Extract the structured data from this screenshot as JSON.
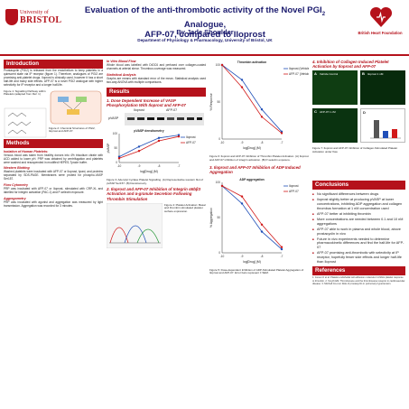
{
  "header": {
    "logo_small": "University of",
    "logo_big": "BRISTOL",
    "title_line1": "Evaluation of the anti-thrombotic activity of the Novel PGI",
    "title_sub": "2",
    "title_line1b": " Analogue,",
    "title_line2": "AFP-07, compared to Iloprost",
    "author": "By Jade Shoulder",
    "dept": "Department of Physiology & Pharmacology, University of Bristol, UK",
    "bhf_label": "British Heart Foundation"
  },
  "col1": {
    "intro_title": "Introduction",
    "intro_text": "Prostacyclin (PGI2) is released from the endothelium to keep platelets in a quiescent state via IP receptor (figure 1). Therefore, analogues of PGI2 are promising anti-platelet drugs. Iloprost is clinically used, however it has a short half-life and many side effects. AFP-07 is a novel PGI2 analogue with higher selectivity for IP receptor and a longer half-life.",
    "fig1_caption": "Figure 1: Signalling Pathway within Platelets (adapted from Ref. 1)",
    "fig2_caption": "Figure 2: Chemical Structures of PGI2, Iloprost and AFP-07.",
    "methods_title": "Methods",
    "m1_sub": "Isolation of Human Platelets:",
    "m1_text": "Venous blood was taken from healthy donors into 4% trisodium citrate with ACD added to lower pH. PRP was obtained by centrifugation and platelets were washed and resuspended in modified HEPES-Tyrode buffer.",
    "m2_sub": "Western Blotting",
    "m2_text": "Washed platelets were incubated with AFP-07 or Iloprost, lysed, and proteins separated by SDS-PAGE. Membranes were probed for phospho-VASP Ser157.",
    "m3_sub": "Flow Cytometry",
    "m3_text": "PRP was incubated with AFP-07 or Iloprost, stimulated with CRP-XL and labelled for integrin activation (PAC-1) and P-selectin exposure.",
    "m4_sub": "Aggregometry",
    "m4_text": "PRP was incubated with agonist and aggregation was measured by light transmission. Aggregation was recorded for 3 minutes."
  },
  "col2": {
    "m5_sub": "In Vitro Blood Flow",
    "m5_text": "Whole blood was labelled with DiOC6 and perfused over collagen-coated channels at arterial shear. Thrombus coverage was measured.",
    "stats_sub": "Statistical Analysis",
    "stats_text": "Graphs are means with standard error of the mean. Statistical analysis used two-way ANOVA with multiple comparisons.",
    "results_title": "Results",
    "r1_title": "1. Dose Dependent Increase of VASP Phosphorylation With Iloprost and AFP-07",
    "blot_label1": "Iloprost",
    "blot_label2": "AFP-07",
    "blot_row": "pVASP",
    "r1_caption": "Figure 3: Adenylyl Cyclase Platelet Signalling. (A) Representative western blot of pVASP Ser157. (B) Densitometry.",
    "r2_title": "2. Iloprost and AFP-07 Inhibition of Integrin αIIbβ3 Activation and α-granule Secretion Following Thrombin Stimulation",
    "r2_panel": "Figure 4: Platelet Activation: Basal and thrombin stimulated platelet surface expression."
  },
  "col3": {
    "r3_caption": "Figure 6: Iloprost and AFP-07 Inhibition of Thrombin Platelet Activation. (A) Iloprost and AFP-07 inhibition of integrin activation. (B) P-selectin exposure.",
    "r3_title": "3. Iloprost and AFP-07 Inhibition of ADP Induced Aggregation",
    "r3b_caption": "Figure 5: Dose-dependent Inhibition of ADP-Stimulated Platelet Aggregation of Iloprost and AFP-07. Error bars represent ± SEM."
  },
  "col4": {
    "r4_title": "4. Inhibition of Collagen Induced Platelet Activation by Iloprost and AFP-07",
    "panel_a": "A",
    "panel_b": "B",
    "panel_c": "C",
    "panel_d": "D",
    "panel_a_label": "Vehicle Control",
    "panel_b_label": "Iloprost 1 nM",
    "panel_c_label": "AFP-07 1 nM",
    "panel_d_label": "",
    "r4_caption": "Figure 7: Iloprost and AFP-07 Inhibition of Collagen-Stimulated Platelet Activation under flow.",
    "conclusions_title": "Conclusions",
    "conclusions": [
      "No significant differences between drugs",
      "Iloprost slightly better at producing pVASP at lower concentrations, inhibiting ADP aggregation and collagen thrombus formation at 1 nM concentration used",
      "AFP-07 better at inhibiting thrombin",
      "More concentrations are needed between 0.1 and 10 nM aggregations",
      "AFP-07 able to work in plasma and whole blood, above prostacyclin in vivo",
      "Future in vivo experiments needed to determine pharmacokinetic differences and find the half-life for AFP-07",
      "AFP-07 promising anti-thrombotic with selectivity at IP receptor, hopefully fewer side effects and longer half-life than Iloprost"
    ],
    "refs_title": "References",
    "refs": "1. Jones CI et al. Platelet endothelial cell adhesion molecule-1 inhibits platelet response to thrombin. 2. Smyth EM. Thromboxane and the thromboxane receptor in cardiovascular disease. 3. Mitchell JA et al. Role of prostacyclin in pulmonary hypertension."
  },
  "colors": {
    "accent": "#b5121b",
    "navy": "#1b1b6e",
    "iloprost": "#1f4fb8",
    "afp": "#d11a1a"
  },
  "chart_data": [
    {
      "type": "line",
      "title": "pVASP densitometry",
      "xlabel": "log[Drug] (M)",
      "ylabel": "pVASP",
      "series": [
        {
          "name": "Iloprost",
          "x": [
            -10,
            -9,
            -8,
            -7
          ],
          "values": [
            20,
            55,
            85,
            95
          ]
        },
        {
          "name": "AFP-07",
          "x": [
            -10,
            -9,
            -8,
            -7
          ],
          "values": [
            15,
            40,
            75,
            90
          ]
        }
      ]
    },
    {
      "type": "line",
      "title": "Thrombin activation",
      "xlabel": "log[Drug] (M)",
      "ylabel": "% Response",
      "series": [
        {
          "name": "Iloprost (Vehicle)",
          "x": [
            -10,
            -9,
            -8,
            -7
          ],
          "values": [
            100,
            80,
            40,
            10
          ]
        },
        {
          "name": "AFP-07 (Vehicle)",
          "x": [
            -10,
            -9,
            -8,
            -7
          ],
          "values": [
            100,
            70,
            30,
            8
          ]
        }
      ]
    },
    {
      "type": "line",
      "title": "ADP aggregation",
      "xlabel": "log[Drug] (M)",
      "ylabel": "% Aggregation",
      "series": [
        {
          "name": "Iloprost",
          "x": [
            -10,
            -9,
            -8,
            -7
          ],
          "values": [
            95,
            70,
            30,
            5
          ]
        },
        {
          "name": "AFP-07",
          "x": [
            -10,
            -9,
            -8,
            -7
          ],
          "values": [
            95,
            80,
            40,
            8
          ]
        }
      ]
    }
  ]
}
